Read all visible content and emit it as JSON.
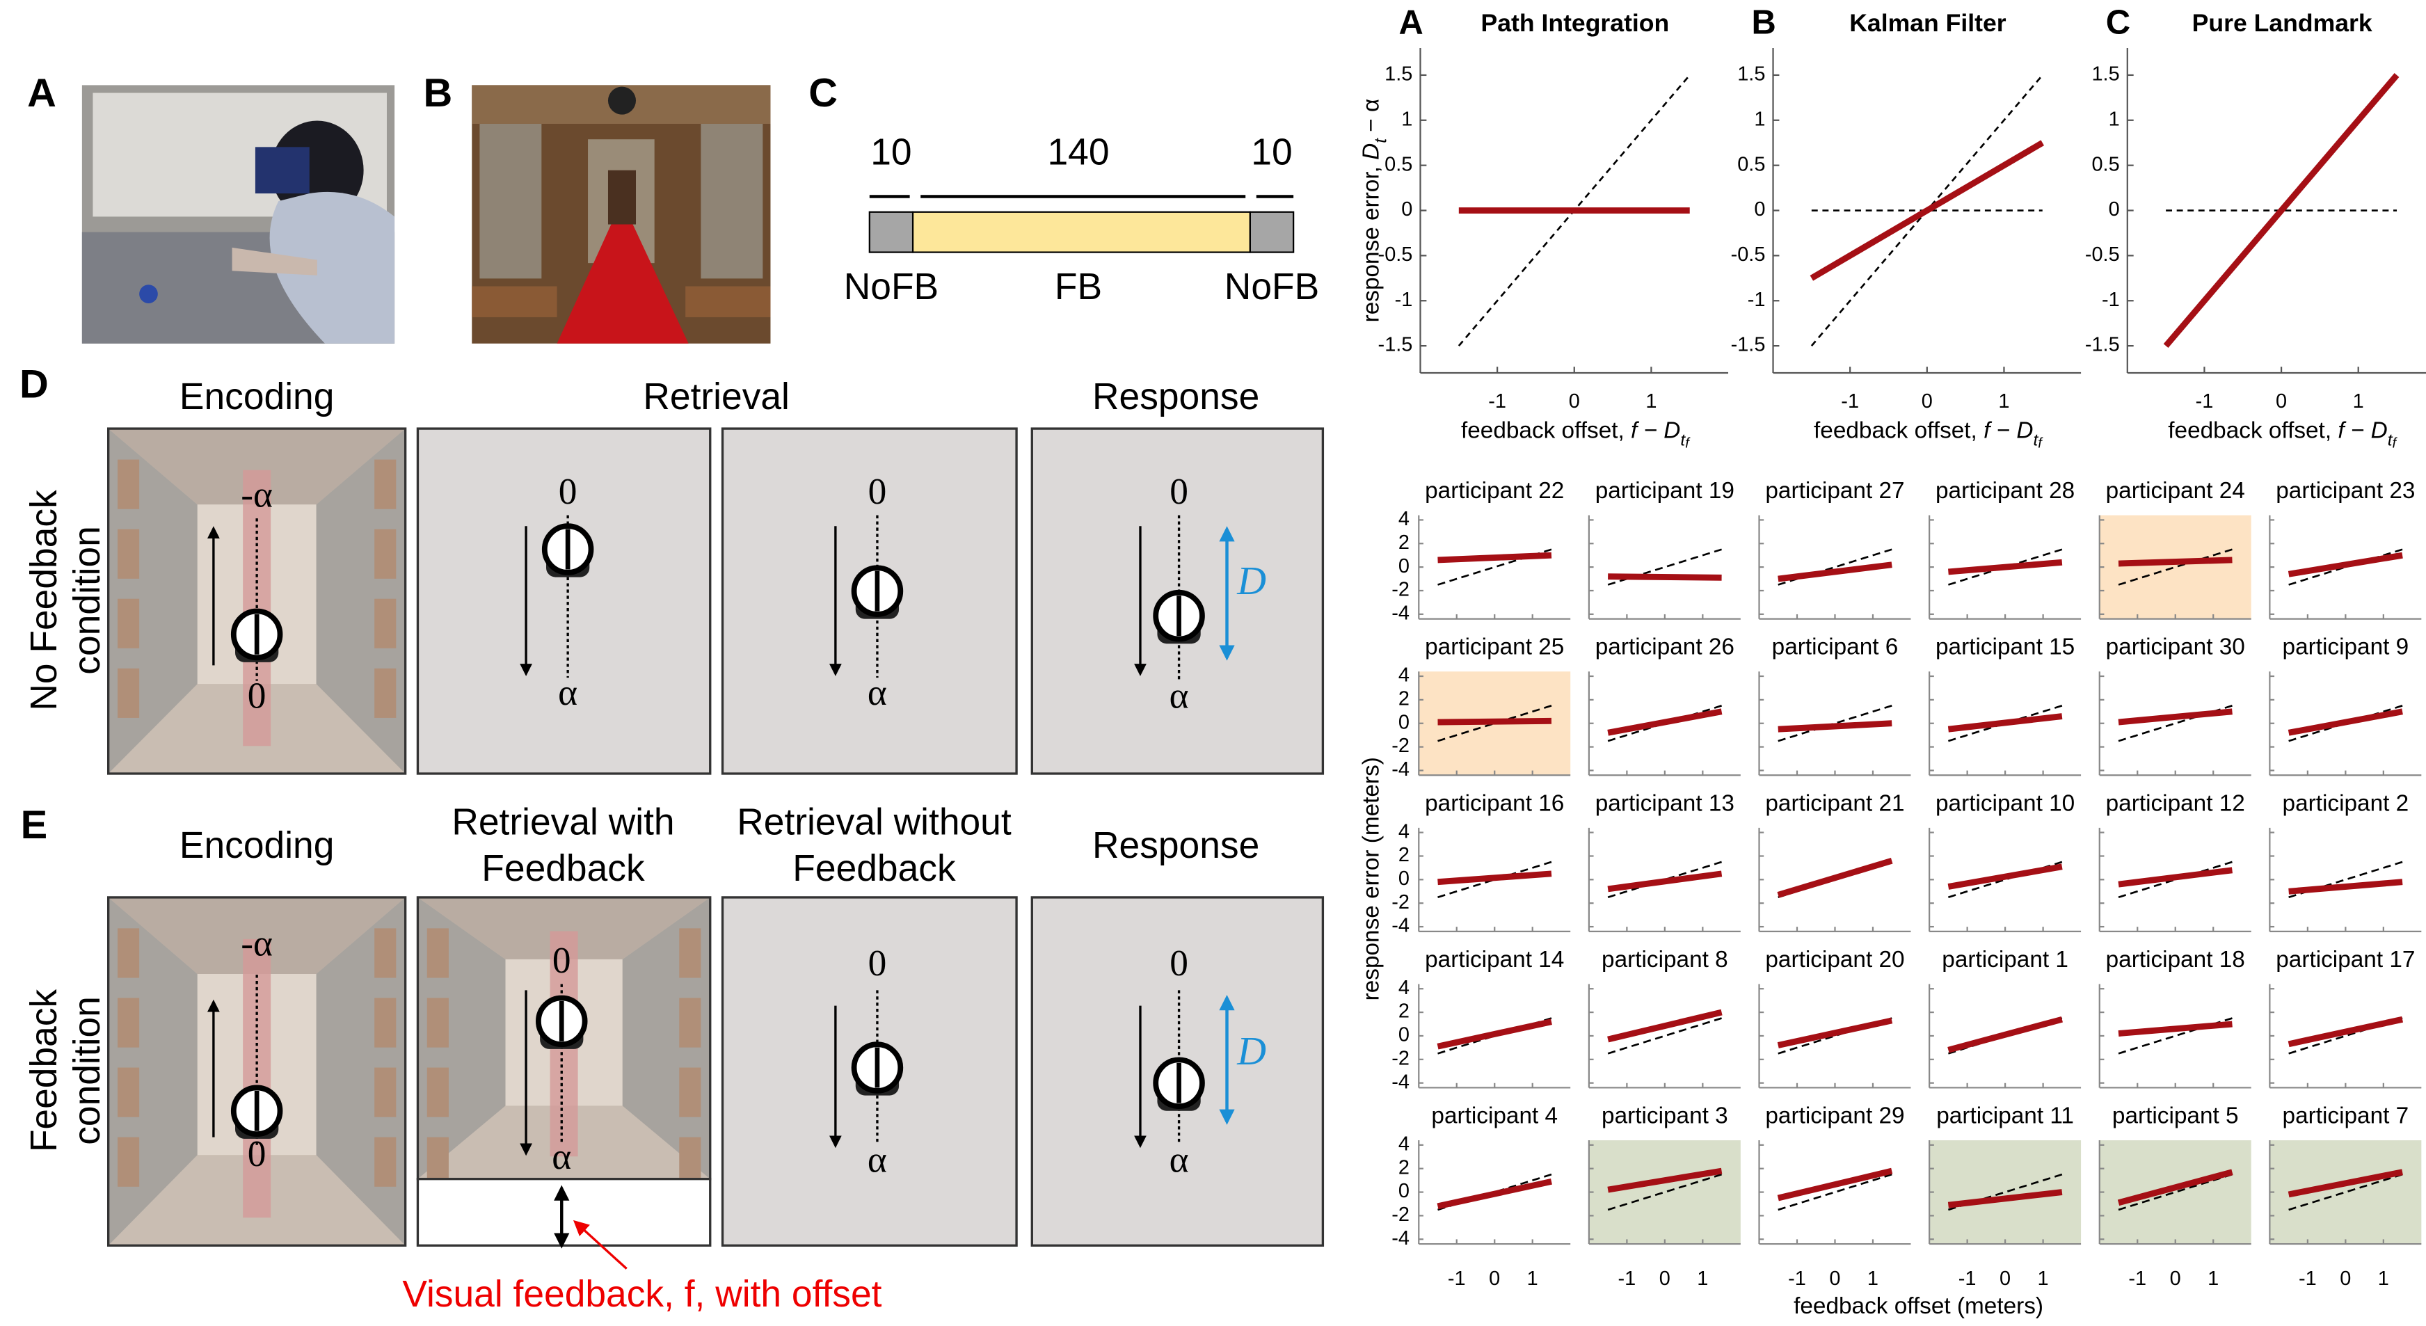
{
  "figure_left": {
    "photo_labels": [
      "A",
      "B",
      "C"
    ],
    "schedule": {
      "counts": [
        "10",
        "140",
        "10"
      ],
      "phases": [
        "NoFB",
        "FB",
        "NoFB"
      ]
    },
    "panel_d": {
      "label": "D",
      "condition": [
        "No Feedback",
        "condition"
      ],
      "headers": [
        "Encoding",
        "Retrieval",
        "Response"
      ]
    },
    "panel_e": {
      "label": "E",
      "condition": [
        "Feedback",
        "condition"
      ],
      "headers": [
        [
          "Encoding"
        ],
        [
          "Retrieval with",
          "Feedback"
        ],
        [
          "Retrieval without",
          "Feedback"
        ],
        [
          "Response"
        ]
      ],
      "feedback_note": "Visual feedback, f, with offset"
    },
    "markers": {
      "start": "0",
      "goal": "α",
      "neg_goal": "-α",
      "distance": "D"
    }
  },
  "model_panels": {
    "letters": [
      "A",
      "B",
      "C"
    ],
    "ylabel_parts": [
      "response error, ",
      "D",
      "t",
      " − α"
    ],
    "xlabel_parts": [
      "feedback offset, ",
      "f − D",
      "t",
      "f"
    ]
  },
  "participant_axes": {
    "xlim": [
      -2,
      2
    ],
    "ylim": [
      -4.4,
      4.4
    ],
    "xticks": [
      -1,
      0,
      1
    ],
    "yticks": [
      -4,
      -2,
      0,
      2,
      4
    ],
    "ylabel": "response error (meters)",
    "xlabel": "feedback offset (meters)",
    "reference": {
      "color": "#000000",
      "dash": true,
      "values": [
        -1.5,
        1.5
      ]
    }
  },
  "chart_data": [
    {
      "type": "line",
      "title": "Path Integration",
      "xlim": [
        -2,
        2
      ],
      "ylim": [
        -1.8,
        1.8
      ],
      "xticks": [
        -1,
        0,
        1
      ],
      "yticks": [
        -1.5,
        -1,
        -0.5,
        0,
        0.5,
        1,
        1.5
      ],
      "x": [
        -1.5,
        1.5
      ],
      "series": [
        {
          "color": "#000000",
          "dash": true,
          "values": [
            -1.5,
            1.5
          ]
        },
        {
          "color": "#a50f15",
          "values": [
            0,
            0
          ]
        }
      ]
    },
    {
      "type": "line",
      "title": "Kalman Filter",
      "xlim": [
        -2,
        2
      ],
      "ylim": [
        -1.8,
        1.8
      ],
      "xticks": [
        -1,
        0,
        1
      ],
      "yticks": [
        -1.5,
        -1,
        -0.5,
        0,
        0.5,
        1,
        1.5
      ],
      "x": [
        -1.5,
        1.5
      ],
      "series": [
        {
          "color": "#000000",
          "dash": true,
          "values": [
            -1.5,
            1.5
          ]
        },
        {
          "color": "#000000",
          "dash": true,
          "values": [
            0,
            0
          ]
        },
        {
          "color": "#a50f15",
          "values": [
            -0.75,
            0.75
          ]
        }
      ]
    },
    {
      "type": "line",
      "title": "Pure Landmark",
      "xlim": [
        -2,
        2
      ],
      "ylim": [
        -1.8,
        1.8
      ],
      "xticks": [
        -1,
        0,
        1
      ],
      "yticks": [
        -1.5,
        -1,
        -0.5,
        0,
        0.5,
        1,
        1.5
      ],
      "x": [
        -1.5,
        1.5
      ],
      "series": [
        {
          "color": "#000000",
          "dash": true,
          "values": [
            0,
            0
          ]
        },
        {
          "color": "#a50f15",
          "values": [
            -1.5,
            1.5
          ]
        }
      ]
    },
    {
      "type": "line",
      "title": "participant 22",
      "x": [
        -1.5,
        1.5
      ],
      "series": [
        {
          "color": "#a50f15",
          "values": [
            0.6,
            1.0
          ]
        }
      ]
    },
    {
      "type": "line",
      "title": "participant 19",
      "x": [
        -1.5,
        1.5
      ],
      "series": [
        {
          "color": "#a50f15",
          "values": [
            -0.8,
            -0.9
          ]
        }
      ]
    },
    {
      "type": "line",
      "title": "participant 27",
      "x": [
        -1.5,
        1.5
      ],
      "series": [
        {
          "color": "#a50f15",
          "values": [
            -1.0,
            0.2
          ]
        }
      ]
    },
    {
      "type": "line",
      "title": "participant 28",
      "x": [
        -1.5,
        1.5
      ],
      "series": [
        {
          "color": "#a50f15",
          "values": [
            -0.4,
            0.4
          ]
        }
      ]
    },
    {
      "type": "line",
      "title": "participant 24",
      "x": [
        -1.5,
        1.5
      ],
      "series": [
        {
          "color": "#a50f15",
          "values": [
            0.3,
            0.6
          ]
        }
      ],
      "background": "#fde3c4"
    },
    {
      "type": "line",
      "title": "participant 23",
      "x": [
        -1.5,
        1.5
      ],
      "series": [
        {
          "color": "#a50f15",
          "values": [
            -0.6,
            1.0
          ]
        }
      ]
    },
    {
      "type": "line",
      "title": "participant 25",
      "x": [
        -1.5,
        1.5
      ],
      "series": [
        {
          "color": "#a50f15",
          "values": [
            0.1,
            0.2
          ]
        }
      ],
      "background": "#fde3c4"
    },
    {
      "type": "line",
      "title": "participant 26",
      "x": [
        -1.5,
        1.5
      ],
      "series": [
        {
          "color": "#a50f15",
          "values": [
            -0.8,
            1.0
          ]
        }
      ]
    },
    {
      "type": "line",
      "title": "participant 6",
      "x": [
        -1.5,
        1.5
      ],
      "series": [
        {
          "color": "#a50f15",
          "values": [
            -0.5,
            0.0
          ]
        }
      ]
    },
    {
      "type": "line",
      "title": "participant 15",
      "x": [
        -1.5,
        1.5
      ],
      "series": [
        {
          "color": "#a50f15",
          "values": [
            -0.5,
            0.6
          ]
        }
      ]
    },
    {
      "type": "line",
      "title": "participant 30",
      "x": [
        -1.5,
        1.5
      ],
      "series": [
        {
          "color": "#a50f15",
          "values": [
            0.1,
            1.0
          ]
        }
      ]
    },
    {
      "type": "line",
      "title": "participant 9",
      "x": [
        -1.5,
        1.5
      ],
      "series": [
        {
          "color": "#a50f15",
          "values": [
            -0.8,
            1.0
          ]
        }
      ]
    },
    {
      "type": "line",
      "title": "participant 16",
      "x": [
        -1.5,
        1.5
      ],
      "series": [
        {
          "color": "#a50f15",
          "values": [
            -0.2,
            0.5
          ]
        }
      ]
    },
    {
      "type": "line",
      "title": "participant 13",
      "x": [
        -1.5,
        1.5
      ],
      "series": [
        {
          "color": "#a50f15",
          "values": [
            -0.8,
            0.5
          ]
        }
      ]
    },
    {
      "type": "line",
      "title": "participant 21",
      "x": [
        -1.5,
        1.5
      ],
      "series": [
        {
          "color": "#a50f15",
          "values": [
            -1.3,
            1.6
          ]
        }
      ]
    },
    {
      "type": "line",
      "title": "participant 10",
      "x": [
        -1.5,
        1.5
      ],
      "series": [
        {
          "color": "#a50f15",
          "values": [
            -0.6,
            1.1
          ]
        }
      ]
    },
    {
      "type": "line",
      "title": "participant 12",
      "x": [
        -1.5,
        1.5
      ],
      "series": [
        {
          "color": "#a50f15",
          "values": [
            -0.4,
            0.8
          ]
        }
      ]
    },
    {
      "type": "line",
      "title": "participant 2",
      "x": [
        -1.5,
        1.5
      ],
      "series": [
        {
          "color": "#a50f15",
          "values": [
            -1.0,
            -0.2
          ]
        }
      ]
    },
    {
      "type": "line",
      "title": "participant 14",
      "x": [
        -1.5,
        1.5
      ],
      "series": [
        {
          "color": "#a50f15",
          "values": [
            -0.9,
            1.2
          ]
        }
      ]
    },
    {
      "type": "line",
      "title": "participant 8",
      "x": [
        -1.5,
        1.5
      ],
      "series": [
        {
          "color": "#a50f15",
          "values": [
            -0.3,
            2.0
          ]
        }
      ]
    },
    {
      "type": "line",
      "title": "participant 20",
      "x": [
        -1.5,
        1.5
      ],
      "series": [
        {
          "color": "#a50f15",
          "values": [
            -0.8,
            1.3
          ]
        }
      ]
    },
    {
      "type": "line",
      "title": "participant 1",
      "x": [
        -1.5,
        1.5
      ],
      "series": [
        {
          "color": "#a50f15",
          "values": [
            -1.2,
            1.4
          ]
        }
      ]
    },
    {
      "type": "line",
      "title": "participant 18",
      "x": [
        -1.5,
        1.5
      ],
      "series": [
        {
          "color": "#a50f15",
          "values": [
            0.2,
            1.0
          ]
        }
      ]
    },
    {
      "type": "line",
      "title": "participant 17",
      "x": [
        -1.5,
        1.5
      ],
      "series": [
        {
          "color": "#a50f15",
          "values": [
            -0.7,
            1.4
          ]
        }
      ]
    },
    {
      "type": "line",
      "title": "participant 4",
      "x": [
        -1.5,
        1.5
      ],
      "series": [
        {
          "color": "#a50f15",
          "values": [
            -1.2,
            0.9
          ]
        }
      ]
    },
    {
      "type": "line",
      "title": "participant 3",
      "x": [
        -1.5,
        1.5
      ],
      "series": [
        {
          "color": "#a50f15",
          "values": [
            0.2,
            1.8
          ]
        }
      ],
      "background": "#d9dfca"
    },
    {
      "type": "line",
      "title": "participant 29",
      "x": [
        -1.5,
        1.5
      ],
      "series": [
        {
          "color": "#a50f15",
          "values": [
            -0.5,
            1.8
          ]
        }
      ]
    },
    {
      "type": "line",
      "title": "participant 11",
      "x": [
        -1.5,
        1.5
      ],
      "series": [
        {
          "color": "#a50f15",
          "values": [
            -1.1,
            0.0
          ]
        }
      ],
      "background": "#d9dfca"
    },
    {
      "type": "line",
      "title": "participant 5",
      "x": [
        -1.5,
        1.5
      ],
      "series": [
        {
          "color": "#a50f15",
          "values": [
            -0.9,
            1.7
          ]
        }
      ],
      "background": "#d9dfca"
    },
    {
      "type": "line",
      "title": "participant 7",
      "x": [
        -1.5,
        1.5
      ],
      "series": [
        {
          "color": "#a50f15",
          "values": [
            -0.2,
            1.7
          ]
        }
      ],
      "background": "#d9dfca"
    }
  ]
}
